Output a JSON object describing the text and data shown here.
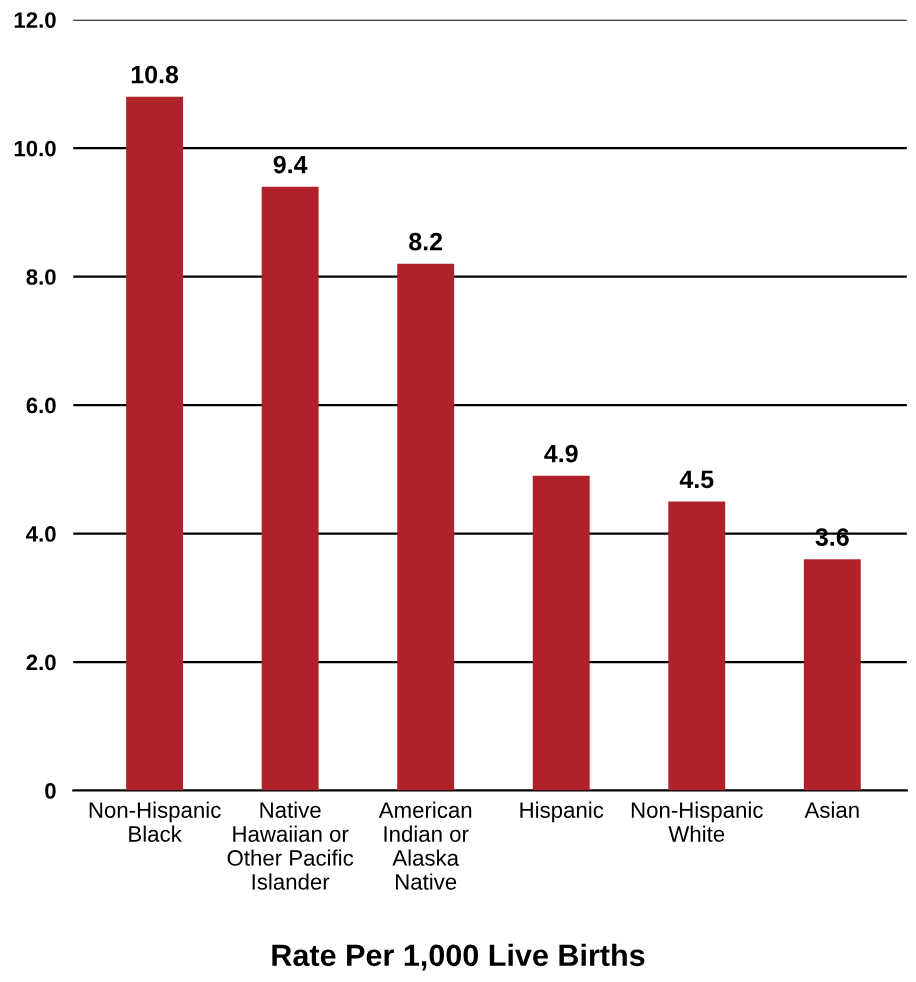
{
  "chart_data": {
    "type": "bar",
    "xlabel": "Rate Per 1,000 Live Births",
    "categories": [
      "Non-Hispanic\nBlack",
      "Native\nHawaiian or\nOther Pacific\nIslander",
      "American\nIndian or\nAlaska\nNative",
      "Hispanic",
      "Non-Hispanic\nWhite",
      "Asian"
    ],
    "values": [
      10.8,
      9.4,
      8.2,
      4.9,
      4.5,
      3.6
    ],
    "color": "#b0222a",
    "ylim": [
      0,
      12
    ],
    "yticks": [
      0,
      {
        "value": 2,
        "label": "2.0"
      },
      {
        "value": 4,
        "label": "4.0"
      },
      {
        "value": 6,
        "label": "6.0"
      },
      {
        "value": 8,
        "label": "8.0"
      },
      {
        "value": 10,
        "label": "10.0"
      },
      {
        "value": 12,
        "label": "12.0"
      }
    ],
    "grid": "y",
    "data_labels": true
  }
}
